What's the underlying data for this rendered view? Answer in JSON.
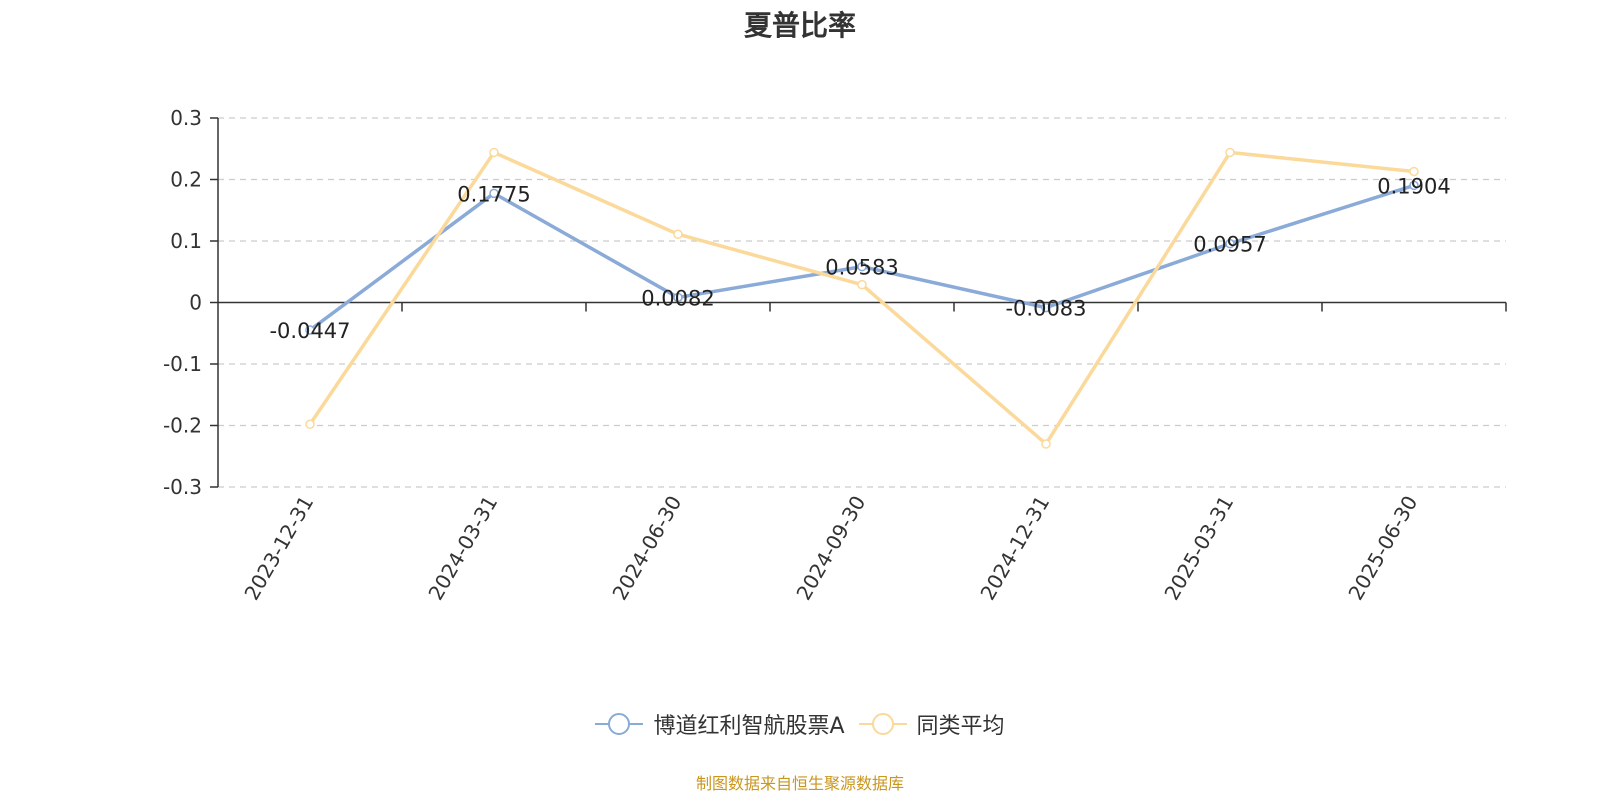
{
  "title": "夏普比率",
  "source_note": "制图数据来自恒生聚源数据库",
  "colors": {
    "series_a": "#8aaad8",
    "series_b": "#fbd99a",
    "axis": "#333333",
    "grid": "#cccccc",
    "source": "#c9961f"
  },
  "chart_data": {
    "type": "line",
    "title": "夏普比率",
    "categories": [
      "2023-12-31",
      "2024-03-31",
      "2024-06-30",
      "2024-09-30",
      "2024-12-31",
      "2025-03-31",
      "2025-06-30"
    ],
    "ylim": [
      -0.3,
      0.3
    ],
    "yticks": [
      0.3,
      0.2,
      0.1,
      0,
      -0.1,
      -0.2,
      -0.3
    ],
    "ytick_labels": [
      "0.3",
      "0.2",
      "0.1",
      "0",
      "-0.1",
      "-0.2",
      "-0.3"
    ],
    "grid": true,
    "legend_position": "bottom-center",
    "series": [
      {
        "name": "博道红利智航股票A",
        "values": [
          -0.0447,
          0.1775,
          0.0082,
          0.0583,
          -0.0083,
          0.0957,
          0.1904
        ],
        "labels": [
          "-0.0447",
          "0.1775",
          "0.0082",
          "0.0583",
          "-0.0083",
          "0.0957",
          "0.1904"
        ]
      },
      {
        "name": "同类平均",
        "values": [
          -0.198,
          0.244,
          0.111,
          0.029,
          -0.23,
          0.244,
          0.213
        ]
      }
    ]
  }
}
